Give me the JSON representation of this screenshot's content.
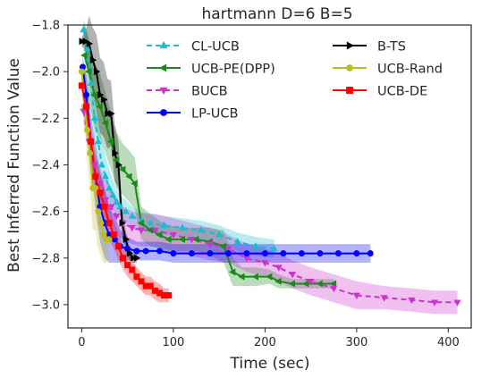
{
  "chart_data": {
    "type": "line",
    "title": "hartmann D=6 B=5",
    "xlabel": "Time (sec)",
    "ylabel": "Best Inferred Function Value",
    "xlim": [
      -15,
      425
    ],
    "ylim": [
      -3.1,
      -1.8
    ],
    "xticks": [
      0,
      100,
      200,
      300,
      400
    ],
    "yticks": [
      -3.0,
      -2.8,
      -2.6,
      -2.4,
      -2.2,
      -2.0,
      -1.8
    ],
    "grid": false,
    "legend_position": "top-right",
    "series": [
      {
        "name": "CL-UCB",
        "color": "#17becf",
        "marker": "triangle-up",
        "dash": "6,4",
        "x": [
          2,
          6,
          10,
          14,
          18,
          22,
          26,
          30,
          34,
          38,
          42,
          48,
          55,
          65,
          75,
          90,
          110,
          130,
          150,
          170,
          190,
          210
        ],
        "y": [
          -1.82,
          -1.9,
          -2.05,
          -2.2,
          -2.3,
          -2.4,
          -2.45,
          -2.5,
          -2.53,
          -2.56,
          -2.58,
          -2.6,
          -2.62,
          -2.64,
          -2.65,
          -2.66,
          -2.67,
          -2.68,
          -2.7,
          -2.73,
          -2.75,
          -2.76
        ],
        "band": [
          0.05,
          0.06,
          0.08,
          0.1,
          0.1,
          0.1,
          0.09,
          0.08,
          0.07,
          0.06,
          0.05,
          0.05,
          0.04,
          0.04,
          0.04,
          0.04,
          0.04,
          0.04,
          0.04,
          0.04,
          0.04,
          0.04
        ]
      },
      {
        "name": "UCB-PE(DPP)",
        "color": "#1a8a1a",
        "marker": "triangle-left",
        "dash": "",
        "x": [
          3,
          8,
          14,
          20,
          26,
          32,
          38,
          45,
          52,
          58,
          65,
          75,
          85,
          95,
          110,
          125,
          140,
          155,
          165,
          175,
          190,
          205,
          215,
          230,
          245,
          260,
          275
        ],
        "y": [
          -1.93,
          -2.0,
          -2.1,
          -2.15,
          -2.22,
          -2.3,
          -2.38,
          -2.42,
          -2.45,
          -2.48,
          -2.65,
          -2.68,
          -2.7,
          -2.72,
          -2.72,
          -2.72,
          -2.73,
          -2.75,
          -2.86,
          -2.88,
          -2.88,
          -2.88,
          -2.9,
          -2.91,
          -2.91,
          -2.91,
          -2.91
        ],
        "band": [
          0.14,
          0.14,
          0.14,
          0.14,
          0.13,
          0.12,
          0.12,
          0.11,
          0.11,
          0.11,
          0.07,
          0.07,
          0.06,
          0.06,
          0.05,
          0.05,
          0.06,
          0.07,
          0.06,
          0.04,
          0.04,
          0.03,
          0.03,
          0.02,
          0.02,
          0.02,
          0.02
        ]
      },
      {
        "name": "BUCB",
        "color": "#cc33cc",
        "marker": "triangle-down",
        "dash": "6,4",
        "x": [
          2,
          8,
          14,
          20,
          26,
          32,
          38,
          45,
          55,
          65,
          80,
          100,
          120,
          140,
          160,
          180,
          200,
          215,
          230,
          250,
          275,
          300,
          330,
          360,
          385,
          410
        ],
        "y": [
          -2.17,
          -2.3,
          -2.4,
          -2.48,
          -2.55,
          -2.58,
          -2.62,
          -2.65,
          -2.67,
          -2.68,
          -2.68,
          -2.7,
          -2.72,
          -2.74,
          -2.76,
          -2.8,
          -2.82,
          -2.84,
          -2.87,
          -2.9,
          -2.93,
          -2.96,
          -2.97,
          -2.98,
          -2.99,
          -2.99
        ],
        "band": [
          0.05,
          0.05,
          0.06,
          0.07,
          0.08,
          0.08,
          0.08,
          0.07,
          0.07,
          0.07,
          0.07,
          0.07,
          0.07,
          0.07,
          0.06,
          0.06,
          0.06,
          0.06,
          0.06,
          0.06,
          0.06,
          0.06,
          0.05,
          0.05,
          0.05,
          0.05
        ]
      },
      {
        "name": "LP-UCB",
        "color": "#0000ff",
        "marker": "circle",
        "dash": "",
        "x": [
          1,
          5,
          10,
          15,
          20,
          25,
          30,
          36,
          42,
          50,
          60,
          70,
          85,
          100,
          120,
          140,
          160,
          180,
          200,
          220,
          240,
          260,
          280,
          300,
          315
        ],
        "y": [
          -1.98,
          -2.1,
          -2.3,
          -2.45,
          -2.58,
          -2.65,
          -2.7,
          -2.72,
          -2.75,
          -2.76,
          -2.77,
          -2.77,
          -2.77,
          -2.78,
          -2.78,
          -2.78,
          -2.78,
          -2.78,
          -2.78,
          -2.78,
          -2.78,
          -2.78,
          -2.78,
          -2.78,
          -2.78
        ],
        "band": [
          0.05,
          0.08,
          0.12,
          0.14,
          0.15,
          0.15,
          0.12,
          0.1,
          0.07,
          0.05,
          0.04,
          0.04,
          0.04,
          0.04,
          0.04,
          0.04,
          0.04,
          0.04,
          0.04,
          0.04,
          0.04,
          0.04,
          0.04,
          0.04,
          0.04
        ]
      },
      {
        "name": "B-TS",
        "color": "#000000",
        "marker": "triangle-right",
        "dash": "",
        "x": [
          0,
          4,
          8,
          12,
          16,
          20,
          24,
          28,
          32,
          36,
          40,
          44,
          48,
          52,
          56,
          60
        ],
        "y": [
          -1.87,
          -1.87,
          -1.88,
          -1.95,
          -2.0,
          -2.1,
          -2.12,
          -2.18,
          -2.18,
          -2.35,
          -2.4,
          -2.65,
          -2.72,
          -2.78,
          -2.8,
          -2.8
        ],
        "band": [
          0.02,
          0.04,
          0.12,
          0.14,
          0.16,
          0.16,
          0.16,
          0.15,
          0.14,
          0.12,
          0.1,
          0.06,
          0.04,
          0.03,
          0.02,
          0.02
        ]
      },
      {
        "name": "UCB-Rand",
        "color": "#bcbd22",
        "marker": "circle",
        "dash": "",
        "x": [
          0,
          3,
          6,
          9,
          12,
          15,
          18,
          21,
          24,
          27,
          30
        ],
        "y": [
          -2.0,
          -2.15,
          -2.25,
          -2.35,
          -2.5,
          -2.5,
          -2.6,
          -2.65,
          -2.7,
          -2.72,
          -2.72
        ],
        "band": [
          0.05,
          0.08,
          0.12,
          0.15,
          0.18,
          0.18,
          0.16,
          0.14,
          0.12,
          0.1,
          0.08
        ]
      },
      {
        "name": "UCB-DE",
        "color": "#ff0000",
        "marker": "square",
        "dash": "",
        "x": [
          0,
          5,
          10,
          15,
          20,
          25,
          30,
          35,
          40,
          45,
          50,
          55,
          60,
          65,
          70,
          75,
          80,
          85,
          90,
          95
        ],
        "y": [
          -2.06,
          -2.15,
          -2.3,
          -2.45,
          -2.52,
          -2.58,
          -2.65,
          -2.7,
          -2.75,
          -2.8,
          -2.83,
          -2.85,
          -2.88,
          -2.9,
          -2.92,
          -2.92,
          -2.94,
          -2.95,
          -2.96,
          -2.96
        ],
        "band": [
          0.04,
          0.06,
          0.08,
          0.08,
          0.08,
          0.07,
          0.07,
          0.06,
          0.06,
          0.05,
          0.05,
          0.05,
          0.04,
          0.04,
          0.04,
          0.04,
          0.04,
          0.04,
          0.03,
          0.03
        ]
      }
    ]
  }
}
